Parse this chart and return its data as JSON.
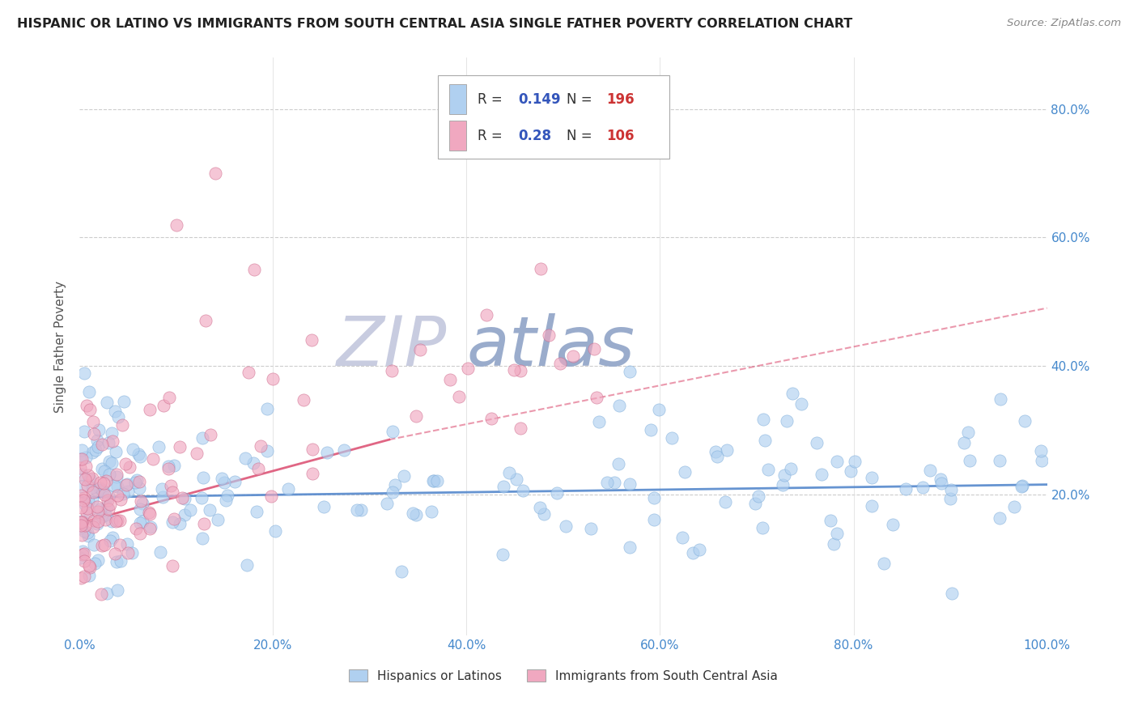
{
  "title": "HISPANIC OR LATINO VS IMMIGRANTS FROM SOUTH CENTRAL ASIA SINGLE FATHER POVERTY CORRELATION CHART",
  "source": "Source: ZipAtlas.com",
  "ylabel": "Single Father Poverty",
  "xlim": [
    0,
    1.0
  ],
  "ylim": [
    -0.02,
    0.88
  ],
  "right_ytick_vals": [
    0.2,
    0.4,
    0.6,
    0.8
  ],
  "right_ytick_labels": [
    "20.0%",
    "40.0%",
    "60.0%",
    "80.0%"
  ],
  "xtick_vals": [
    0.0,
    0.2,
    0.4,
    0.6,
    0.8,
    1.0
  ],
  "xtick_labels": [
    "0.0%",
    "20.0%",
    "40.0%",
    "60.0%",
    "80.0%",
    "100.0%"
  ],
  "series1": {
    "label": "Hispanics or Latinos",
    "color": "#b0d0f0",
    "edge_color": "#7aaad8",
    "R": 0.149,
    "N": 196,
    "trend_color": "#5588cc",
    "trend_x0": 0.0,
    "trend_x1": 1.0,
    "trend_y0": 0.195,
    "trend_y1": 0.215
  },
  "series2": {
    "label": "Immigrants from South Central Asia",
    "color": "#f0a8c0",
    "edge_color": "#cc6688",
    "R": 0.28,
    "N": 106,
    "trend_color": "#dd5577",
    "trend_solid_x0": 0.0,
    "trend_solid_x1": 0.32,
    "trend_solid_y0": 0.155,
    "trend_solid_y1": 0.285,
    "trend_dash_x0": 0.32,
    "trend_dash_x1": 1.0,
    "trend_dash_y0": 0.285,
    "trend_dash_y1": 0.49
  },
  "legend_label_color": "#333333",
  "legend_R_color": "#3355bb",
  "legend_N_color": "#cc3333",
  "background_color": "#ffffff",
  "grid_color": "#cccccc",
  "watermark_zip_color": "#c8cce0",
  "watermark_atlas_color": "#9aaccc"
}
